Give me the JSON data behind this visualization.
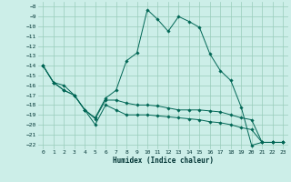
{
  "xlabel": "Humidex (Indice chaleur)",
  "xlim": [
    -0.5,
    23.5
  ],
  "ylim": [
    -22.5,
    -7.5
  ],
  "yticks": [
    -8,
    -9,
    -10,
    -11,
    -12,
    -13,
    -14,
    -15,
    -16,
    -17,
    -18,
    -19,
    -20,
    -21,
    -22
  ],
  "xticks": [
    0,
    1,
    2,
    3,
    4,
    5,
    6,
    7,
    8,
    9,
    10,
    11,
    12,
    13,
    14,
    15,
    16,
    17,
    18,
    19,
    20,
    21,
    22,
    23
  ],
  "bg_color": "#cceee8",
  "grid_color": "#99ccbb",
  "line_color": "#006655",
  "line1_y": [
    -14.0,
    -15.7,
    -16.0,
    -17.0,
    -18.5,
    -19.3,
    -17.3,
    -16.5,
    -13.5,
    -12.7,
    -8.3,
    -9.3,
    -10.5,
    -9.0,
    -9.5,
    -10.1,
    -12.8,
    -14.5,
    -15.5,
    -18.2,
    -22.1,
    -21.8,
    -21.8,
    -21.8
  ],
  "line2_y": [
    -14.0,
    -15.7,
    -16.5,
    -17.0,
    -18.5,
    -19.4,
    -17.5,
    -17.5,
    -17.8,
    -18.0,
    -18.0,
    -18.1,
    -18.3,
    -18.5,
    -18.5,
    -18.5,
    -18.6,
    -18.7,
    -19.0,
    -19.3,
    -19.5,
    -21.8,
    -21.8,
    -21.8
  ],
  "line3_y": [
    -14.0,
    -15.7,
    -16.5,
    -17.0,
    -18.5,
    -20.0,
    -18.0,
    -18.5,
    -19.0,
    -19.0,
    -19.0,
    -19.1,
    -19.2,
    -19.3,
    -19.4,
    -19.5,
    -19.7,
    -19.8,
    -20.0,
    -20.3,
    -20.5,
    -21.8,
    -21.8,
    -21.8
  ]
}
